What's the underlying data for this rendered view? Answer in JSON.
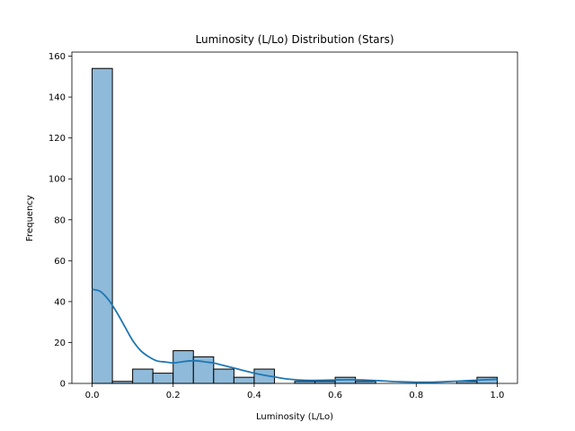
{
  "chart_data": {
    "type": "bar",
    "subtype": "histogram_with_kde",
    "title": "Luminosity (L/Lo) Distribution (Stars)",
    "xlabel": "Luminosity (L/Lo)",
    "ylabel": "Frequency",
    "xlim": [
      -0.05,
      1.05
    ],
    "ylim": [
      0,
      162
    ],
    "xticks": [
      0.0,
      0.2,
      0.4,
      0.6,
      0.8,
      1.0
    ],
    "xtick_labels": [
      "0.0",
      "0.2",
      "0.4",
      "0.6",
      "0.8",
      "1.0"
    ],
    "yticks": [
      0,
      20,
      40,
      60,
      80,
      100,
      120,
      140,
      160
    ],
    "ytick_labels": [
      "0",
      "20",
      "40",
      "60",
      "80",
      "100",
      "120",
      "140",
      "160"
    ],
    "grid": false,
    "bar_color": "#8fbad9",
    "bar_edge_color": "#000000",
    "kde_color": "#1f77b4",
    "bins": [
      {
        "x0": 0.0,
        "x1": 0.05,
        "count": 154
      },
      {
        "x0": 0.05,
        "x1": 0.1,
        "count": 1
      },
      {
        "x0": 0.1,
        "x1": 0.15,
        "count": 7
      },
      {
        "x0": 0.15,
        "x1": 0.2,
        "count": 5
      },
      {
        "x0": 0.2,
        "x1": 0.25,
        "count": 16
      },
      {
        "x0": 0.25,
        "x1": 0.3,
        "count": 13
      },
      {
        "x0": 0.3,
        "x1": 0.35,
        "count": 7
      },
      {
        "x0": 0.35,
        "x1": 0.4,
        "count": 3
      },
      {
        "x0": 0.4,
        "x1": 0.45,
        "count": 7
      },
      {
        "x0": 0.45,
        "x1": 0.5,
        "count": 0
      },
      {
        "x0": 0.5,
        "x1": 0.55,
        "count": 1
      },
      {
        "x0": 0.55,
        "x1": 0.6,
        "count": 1
      },
      {
        "x0": 0.6,
        "x1": 0.65,
        "count": 3
      },
      {
        "x0": 0.65,
        "x1": 0.7,
        "count": 1
      },
      {
        "x0": 0.7,
        "x1": 0.75,
        "count": 0
      },
      {
        "x0": 0.75,
        "x1": 0.8,
        "count": 0
      },
      {
        "x0": 0.8,
        "x1": 0.85,
        "count": 0
      },
      {
        "x0": 0.85,
        "x1": 0.9,
        "count": 0
      },
      {
        "x0": 0.9,
        "x1": 0.95,
        "count": 1
      },
      {
        "x0": 0.95,
        "x1": 1.0,
        "count": 3
      }
    ],
    "kde": {
      "x": [
        0.0,
        0.02,
        0.04,
        0.06,
        0.08,
        0.1,
        0.12,
        0.14,
        0.16,
        0.18,
        0.2,
        0.22,
        0.24,
        0.26,
        0.28,
        0.3,
        0.32,
        0.34,
        0.36,
        0.38,
        0.4,
        0.44,
        0.48,
        0.52,
        0.56,
        0.6,
        0.64,
        0.68,
        0.72,
        0.76,
        0.8,
        0.84,
        0.88,
        0.92,
        0.96,
        1.0
      ],
      "y": [
        46,
        45,
        41,
        35,
        28,
        21,
        16,
        13,
        11,
        10.5,
        10,
        10.5,
        11,
        11,
        10.5,
        10,
        9,
        8,
        7,
        6,
        5,
        3.5,
        2.2,
        1.6,
        1.5,
        1.7,
        1.8,
        1.6,
        1.2,
        0.8,
        0.6,
        0.6,
        0.9,
        1.3,
        1.7,
        2.0
      ]
    }
  }
}
